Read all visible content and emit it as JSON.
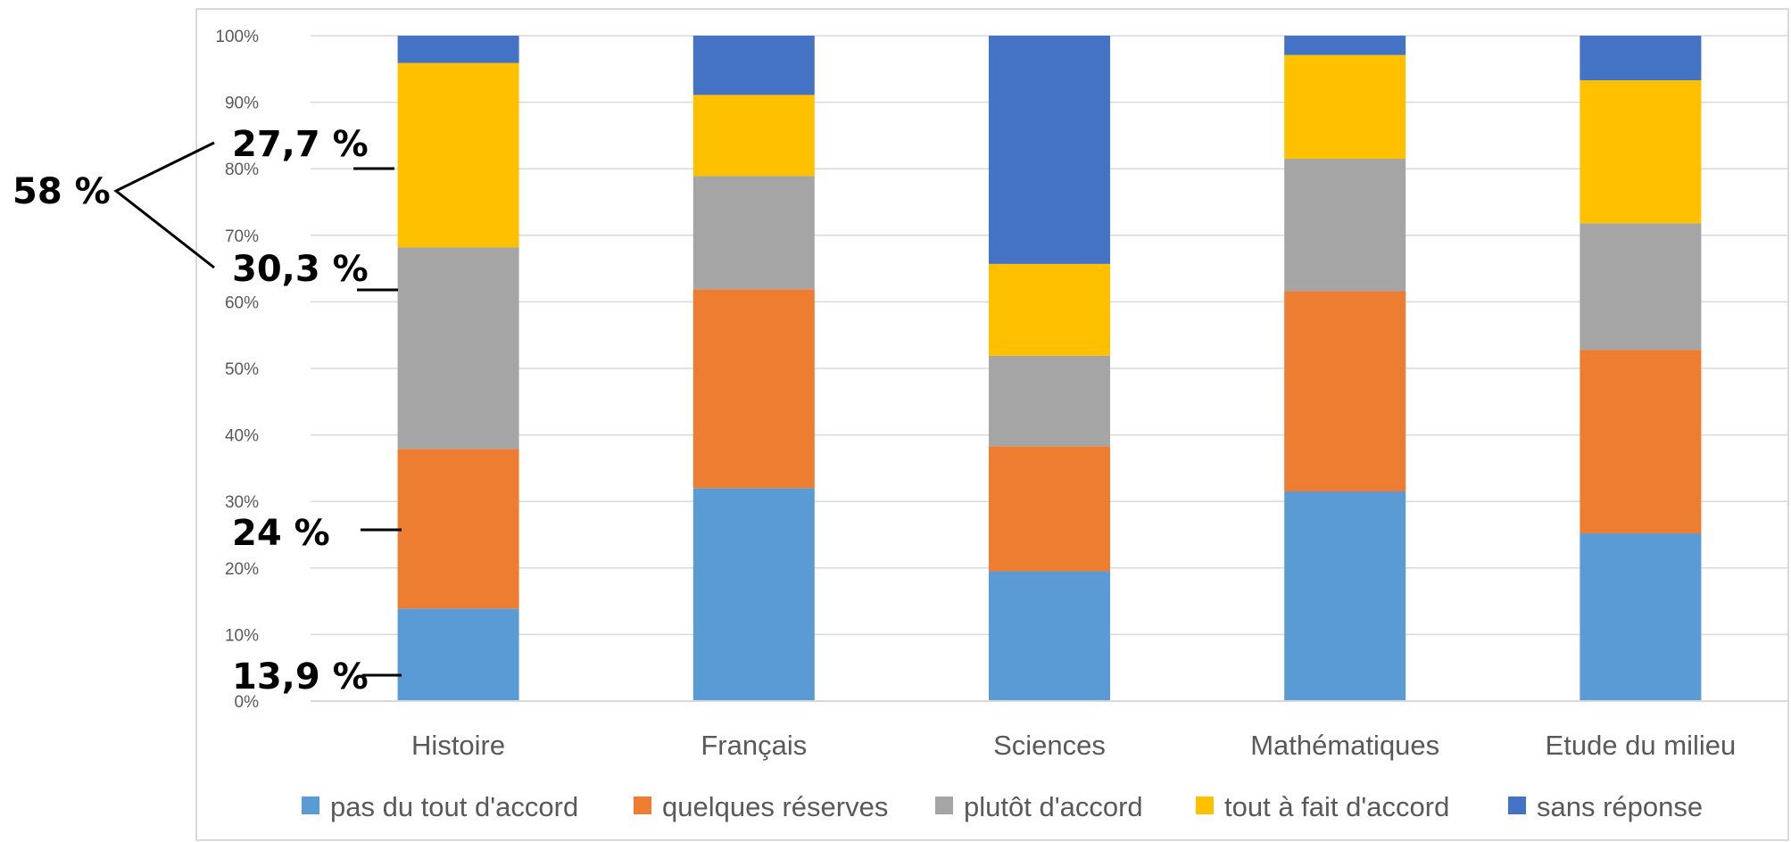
{
  "chart_data": {
    "type": "bar",
    "stacked": true,
    "percent_stacked": true,
    "categories": [
      "Histoire",
      "Français",
      "Sciences",
      "Mathématiques",
      "Etude du milieu"
    ],
    "series": [
      {
        "name": "pas du tout d'accord",
        "color": "#5B9BD5",
        "values": [
          13.9,
          32.0,
          19.5,
          31.5,
          25.2
        ]
      },
      {
        "name": "quelques réserves",
        "color": "#ED7D31",
        "values": [
          24.0,
          29.9,
          18.8,
          30.1,
          27.6
        ]
      },
      {
        "name": "plutôt d'accord",
        "color": "#A5A5A5",
        "values": [
          30.3,
          17.0,
          13.6,
          19.9,
          19.0
        ]
      },
      {
        "name": "tout à fait d'accord",
        "color": "#FFC000",
        "values": [
          27.7,
          12.2,
          13.8,
          15.6,
          21.5
        ]
      },
      {
        "name": "sans réponse",
        "color": "#4472C4",
        "values": [
          4.1,
          8.9,
          34.3,
          2.9,
          6.7
        ]
      }
    ],
    "ylim": [
      0,
      100
    ],
    "yticks": [
      "0%",
      "10%",
      "20%",
      "30%",
      "40%",
      "50%",
      "60%",
      "70%",
      "80%",
      "90%",
      "100%"
    ],
    "grid": true,
    "legend": "bottom",
    "annotations": [
      {
        "text": "58 %",
        "type": "brace"
      },
      {
        "text": "27,7 %"
      },
      {
        "text": "30,3 %"
      },
      {
        "text": "24 %"
      },
      {
        "text": "13,9 %"
      }
    ]
  }
}
